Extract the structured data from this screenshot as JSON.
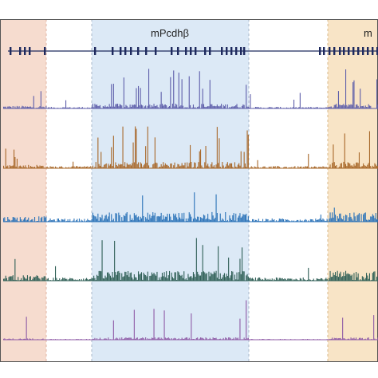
{
  "cluster_labels": {
    "beta": "mPcdhβ",
    "gamma": "m"
  },
  "colors": {
    "region_left": "#f6dccf",
    "region_beta": "#dce9f6",
    "region_gamma": "#f8e4c6",
    "gene_track": "#1e2a5e",
    "dashed_border": "#a9b8c8"
  },
  "tracks": [
    {
      "color": "#5e5eaa"
    },
    {
      "color": "#a8682a"
    },
    {
      "color": "#2a72b8"
    },
    {
      "color": "#2f5f56"
    },
    {
      "color": "#8e5aa6"
    }
  ]
}
